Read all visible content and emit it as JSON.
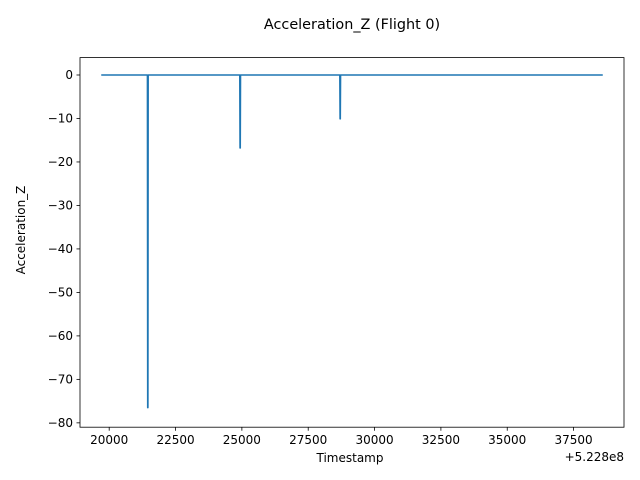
{
  "chart_data": {
    "type": "line",
    "title": "Acceleration_Z (Flight 0)",
    "xlabel": "Timestamp",
    "ylabel": "Acceleration_Z",
    "x_offset_label": "+5.228e8",
    "xlim": [
      18900,
      39400
    ],
    "ylim": [
      -81,
      4
    ],
    "x_ticks": [
      20000,
      22500,
      25000,
      27500,
      30000,
      32500,
      35000,
      37500
    ],
    "x_tick_labels": [
      "20000",
      "22500",
      "25000",
      "27500",
      "30000",
      "32500",
      "35000",
      "37500"
    ],
    "y_ticks": [
      0,
      -10,
      -20,
      -30,
      -40,
      -50,
      -60,
      -70,
      -80
    ],
    "y_tick_labels": [
      "0",
      "−10",
      "−20",
      "−30",
      "−40",
      "−50",
      "−60",
      "−70",
      "−80"
    ],
    "grid": false,
    "series": [
      {
        "color": "#1f77b4",
        "x": [
          19700,
          21440,
          21450,
          21460,
          21470,
          24920,
          24930,
          24940,
          24950,
          28690,
          28700,
          28710,
          28720,
          38600
        ],
        "y": [
          0,
          0,
          -76.5,
          -76.5,
          0,
          0,
          -16.8,
          -16.8,
          0,
          0,
          -10.1,
          -10.1,
          0,
          0
        ]
      }
    ]
  }
}
